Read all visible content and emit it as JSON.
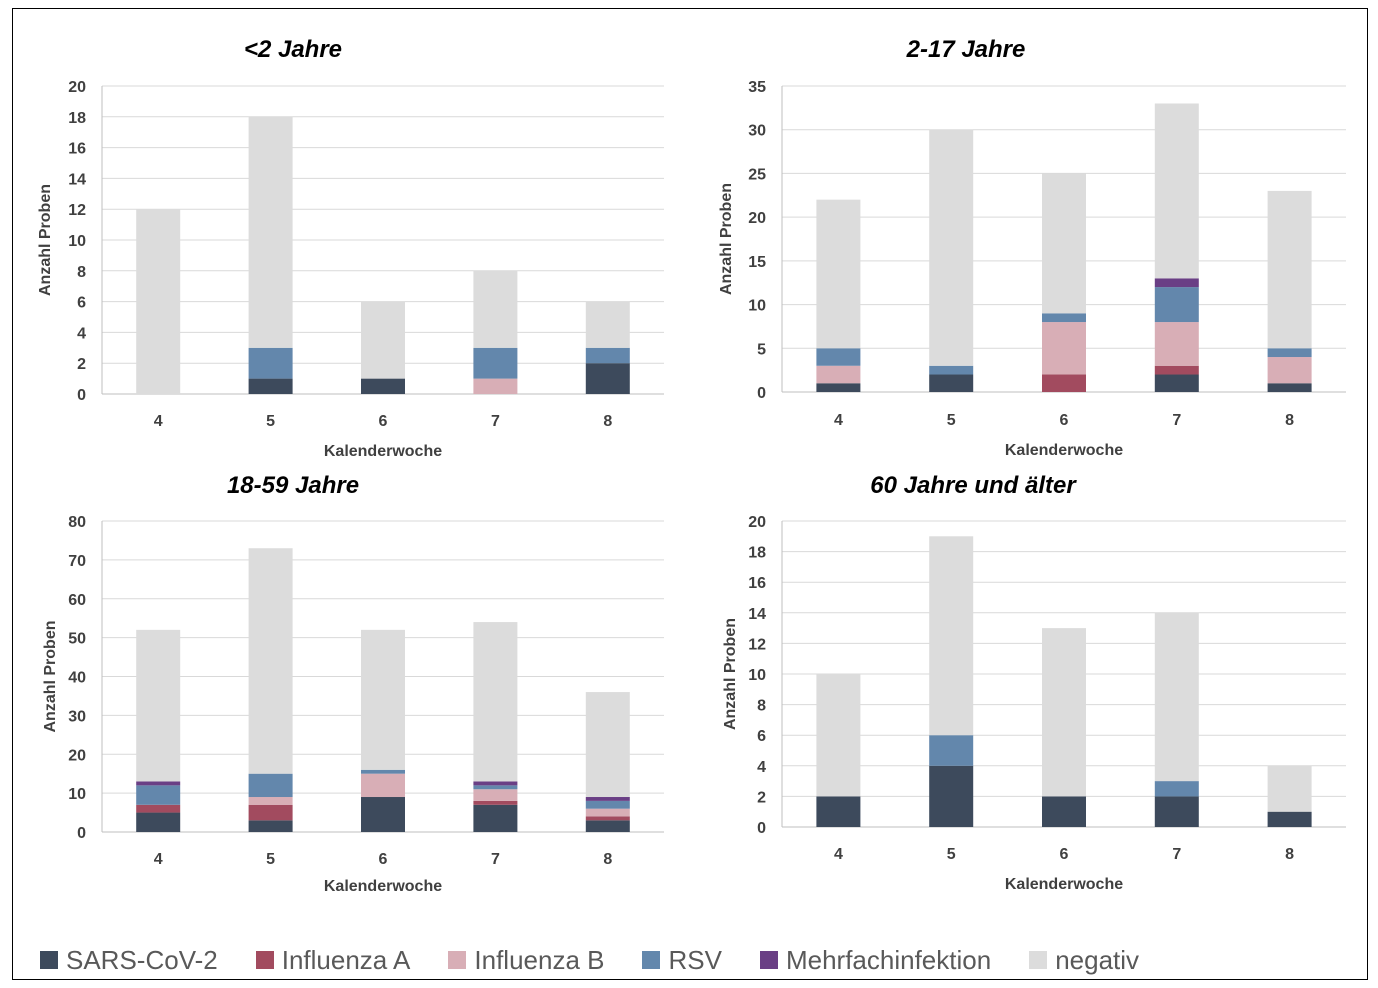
{
  "colors": {
    "SARS-CoV-2": "#3d4a5c",
    "Influenza A": "#a24b5f",
    "Influenza B": "#d8aeb6",
    "RSV": "#6387ac",
    "Mehrfachinfektion": "#6a3f85",
    "negativ": "#dcdcdc",
    "grid": "#d9d9d9",
    "axis": "#bfbfbf"
  },
  "legend": {
    "items": [
      {
        "label": "SARS-CoV-2",
        "color": "#3d4a5c"
      },
      {
        "label": "Influenza A",
        "color": "#a24b5f"
      },
      {
        "label": "Influenza B",
        "color": "#d8aeb6"
      },
      {
        "label": "RSV",
        "color": "#6387ac"
      },
      {
        "label": "Mehrfachinfektion",
        "color": "#6a3f85"
      },
      {
        "label": "negativ",
        "color": "#dcdcdc"
      }
    ]
  },
  "chart_data": [
    {
      "type": "bar",
      "stacked": true,
      "title": "<2 Jahre",
      "xlabel": "Kalenderwoche",
      "ylabel": "Anzahl Proben",
      "categories": [
        "4",
        "5",
        "6",
        "7",
        "8"
      ],
      "ylim": [
        0,
        20
      ],
      "yticks": [
        0,
        2,
        4,
        6,
        8,
        10,
        12,
        14,
        16,
        18,
        20
      ],
      "grid": true,
      "series": [
        {
          "name": "SARS-CoV-2",
          "values": [
            0,
            1,
            1,
            0,
            2
          ]
        },
        {
          "name": "Influenza A",
          "values": [
            0,
            0,
            0,
            0,
            0
          ]
        },
        {
          "name": "Influenza B",
          "values": [
            0,
            0,
            0,
            1,
            0
          ]
        },
        {
          "name": "RSV",
          "values": [
            0,
            2,
            0,
            2,
            1
          ]
        },
        {
          "name": "Mehrfachinfektion",
          "values": [
            0,
            0,
            0,
            0,
            0
          ]
        },
        {
          "name": "negativ",
          "values": [
            12,
            15,
            5,
            5,
            3
          ]
        }
      ]
    },
    {
      "type": "bar",
      "stacked": true,
      "title": "2-17 Jahre",
      "xlabel": "Kalenderwoche",
      "ylabel": "Anzahl Proben",
      "categories": [
        "4",
        "5",
        "6",
        "7",
        "8"
      ],
      "ylim": [
        0,
        35
      ],
      "yticks": [
        0,
        5,
        10,
        15,
        20,
        25,
        30,
        35
      ],
      "grid": true,
      "series": [
        {
          "name": "SARS-CoV-2",
          "values": [
            1,
            2,
            0,
            2,
            1
          ]
        },
        {
          "name": "Influenza A",
          "values": [
            0,
            0,
            2,
            1,
            0
          ]
        },
        {
          "name": "Influenza B",
          "values": [
            2,
            0,
            6,
            5,
            3
          ]
        },
        {
          "name": "RSV",
          "values": [
            2,
            1,
            1,
            4,
            1
          ]
        },
        {
          "name": "Mehrfachinfektion",
          "values": [
            0,
            0,
            0,
            1,
            0
          ]
        },
        {
          "name": "negativ",
          "values": [
            17,
            27,
            16,
            20,
            18
          ]
        }
      ]
    },
    {
      "type": "bar",
      "stacked": true,
      "title": "18-59 Jahre",
      "xlabel": "Kalenderwoche",
      "ylabel": "Anzahl Proben",
      "categories": [
        "4",
        "5",
        "6",
        "7",
        "8"
      ],
      "ylim": [
        0,
        80
      ],
      "yticks": [
        0,
        10,
        20,
        30,
        40,
        50,
        60,
        70,
        80
      ],
      "grid": true,
      "series": [
        {
          "name": "SARS-CoV-2",
          "values": [
            5,
            3,
            9,
            7,
            3
          ]
        },
        {
          "name": "Influenza A",
          "values": [
            2,
            4,
            0,
            1,
            1
          ]
        },
        {
          "name": "Influenza B",
          "values": [
            0,
            2,
            6,
            3,
            2
          ]
        },
        {
          "name": "RSV",
          "values": [
            5,
            6,
            1,
            1,
            2
          ]
        },
        {
          "name": "Mehrfachinfektion",
          "values": [
            1,
            0,
            0,
            1,
            1
          ]
        },
        {
          "name": "negativ",
          "values": [
            39,
            58,
            36,
            41,
            27
          ]
        }
      ]
    },
    {
      "type": "bar",
      "stacked": true,
      "title": "60 Jahre und älter",
      "xlabel": "Kalenderwoche",
      "ylabel": "Anzahl Proben",
      "categories": [
        "4",
        "5",
        "6",
        "7",
        "8"
      ],
      "ylim": [
        0,
        20
      ],
      "yticks": [
        0,
        2,
        4,
        6,
        8,
        10,
        12,
        14,
        16,
        18,
        20
      ],
      "grid": true,
      "series": [
        {
          "name": "SARS-CoV-2",
          "values": [
            2,
            4,
            2,
            2,
            1
          ]
        },
        {
          "name": "Influenza A",
          "values": [
            0,
            0,
            0,
            0,
            0
          ]
        },
        {
          "name": "Influenza B",
          "values": [
            0,
            0,
            0,
            0,
            0
          ]
        },
        {
          "name": "RSV",
          "values": [
            0,
            2,
            0,
            1,
            0
          ]
        },
        {
          "name": "Mehrfachinfektion",
          "values": [
            0,
            0,
            0,
            0,
            0
          ]
        },
        {
          "name": "negativ",
          "values": [
            8,
            13,
            11,
            11,
            3
          ]
        }
      ]
    }
  ]
}
